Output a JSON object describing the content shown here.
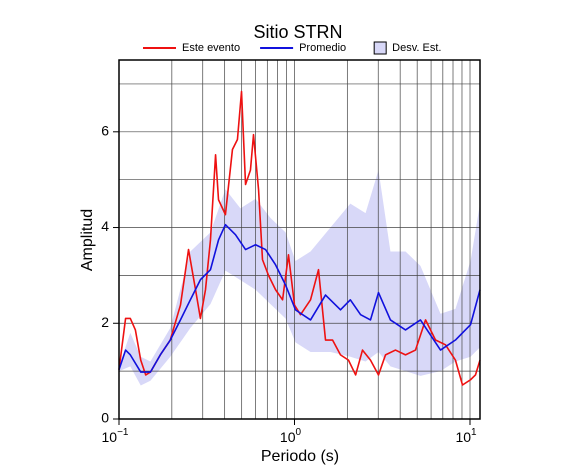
{
  "chart_data": {
    "type": "line",
    "title": "Sitio STRN",
    "x_label": "Periodo (s)",
    "y_label": "Amplitud",
    "log_x": true,
    "grid": true,
    "xlim": [
      0.1,
      11.4
    ],
    "ylim": [
      0,
      7.5
    ],
    "xticks": [
      {
        "value": 0.1,
        "label": "10",
        "exponent": "−1"
      },
      {
        "value": 1,
        "label": "10",
        "exponent": "0"
      },
      {
        "value": 10,
        "label": "10",
        "exponent": "1"
      }
    ],
    "xgrid": [
      0.2,
      0.3,
      0.4,
      0.5,
      0.6,
      0.7,
      0.8,
      0.9,
      1,
      2,
      3,
      4,
      5,
      6,
      7,
      8,
      9,
      10
    ],
    "yticks": [
      0,
      2,
      4,
      6
    ],
    "ygrid": [
      1,
      2,
      3,
      4,
      5,
      6,
      7
    ],
    "band": {
      "name": "Desv. Est.",
      "color": "#d8d8f8",
      "x": [
        0.1,
        0.116,
        0.133,
        0.151,
        0.196,
        0.255,
        0.332,
        0.404,
        0.492,
        0.6,
        0.73,
        0.889,
        1.013,
        1.234,
        1.603,
        2.08,
        2.54,
        3.01,
        3.52,
        4.29,
        5.22,
        6.79,
        8.26,
        10.07,
        11.4
      ],
      "lower": [
        1.0,
        1.1,
        0.7,
        0.8,
        1.3,
        1.9,
        2.4,
        3.1,
        2.9,
        2.7,
        2.4,
        2.1,
        1.6,
        1.4,
        1.4,
        1.3,
        1.2,
        1.4,
        1.1,
        1.0,
        0.9,
        1.0,
        1.2,
        1.3,
        1.5
      ],
      "upper": [
        1.1,
        1.8,
        1.3,
        1.2,
        1.9,
        3.5,
        3.9,
        4.8,
        4.4,
        4.6,
        4.2,
        3.9,
        3.3,
        3.5,
        4.0,
        4.5,
        4.3,
        5.2,
        3.5,
        3.5,
        3.2,
        2.2,
        2.3,
        3.3,
        4.5
      ]
    },
    "series": [
      {
        "name": "Este evento",
        "color": "#ee1111",
        "x": [
          0.1,
          0.109,
          0.116,
          0.124,
          0.133,
          0.142,
          0.151,
          0.172,
          0.196,
          0.224,
          0.249,
          0.273,
          0.291,
          0.311,
          0.332,
          0.355,
          0.369,
          0.404,
          0.443,
          0.473,
          0.499,
          0.526,
          0.561,
          0.584,
          0.624,
          0.657,
          0.711,
          0.78,
          0.855,
          0.924,
          1.0,
          1.082,
          1.234,
          1.37,
          1.502,
          1.647,
          1.828,
          2.03,
          2.23,
          2.44,
          2.71,
          3.01,
          3.3,
          3.76,
          4.29,
          4.89,
          5.58,
          6.36,
          7.25,
          8.26,
          9.06,
          10.07,
          10.74,
          11.4
        ],
        "values": [
          1.03,
          2.1,
          2.1,
          1.86,
          1.23,
          0.92,
          0.98,
          1.34,
          1.65,
          2.38,
          3.54,
          2.7,
          2.1,
          2.7,
          3.74,
          5.52,
          4.58,
          4.27,
          5.63,
          5.84,
          6.84,
          4.9,
          5.2,
          5.94,
          4.79,
          3.33,
          3.0,
          2.7,
          2.49,
          3.43,
          2.38,
          2.18,
          2.49,
          3.12,
          1.65,
          1.65,
          1.34,
          1.23,
          0.92,
          1.44,
          1.23,
          0.92,
          1.34,
          1.44,
          1.34,
          1.44,
          2.07,
          1.65,
          1.55,
          1.23,
          0.71,
          0.82,
          0.92,
          1.23
        ]
      },
      {
        "name": "Promedio",
        "color": "#1111dd",
        "x": [
          0.1,
          0.109,
          0.116,
          0.133,
          0.151,
          0.172,
          0.196,
          0.224,
          0.255,
          0.291,
          0.332,
          0.369,
          0.404,
          0.461,
          0.526,
          0.6,
          0.684,
          0.78,
          0.889,
          1.013,
          1.234,
          1.502,
          1.828,
          2.08,
          2.38,
          2.71,
          3.01,
          3.52,
          4.29,
          5.22,
          6.79,
          8.26,
          10.07,
          11.4
        ],
        "values": [
          1.03,
          1.44,
          1.34,
          0.98,
          0.98,
          1.34,
          1.65,
          2.07,
          2.49,
          2.91,
          3.12,
          3.74,
          4.06,
          3.85,
          3.54,
          3.64,
          3.54,
          3.22,
          2.8,
          2.28,
          2.07,
          2.59,
          2.28,
          2.49,
          2.18,
          2.07,
          2.64,
          2.07,
          1.86,
          2.07,
          1.44,
          1.65,
          1.97,
          2.7
        ]
      }
    ]
  }
}
